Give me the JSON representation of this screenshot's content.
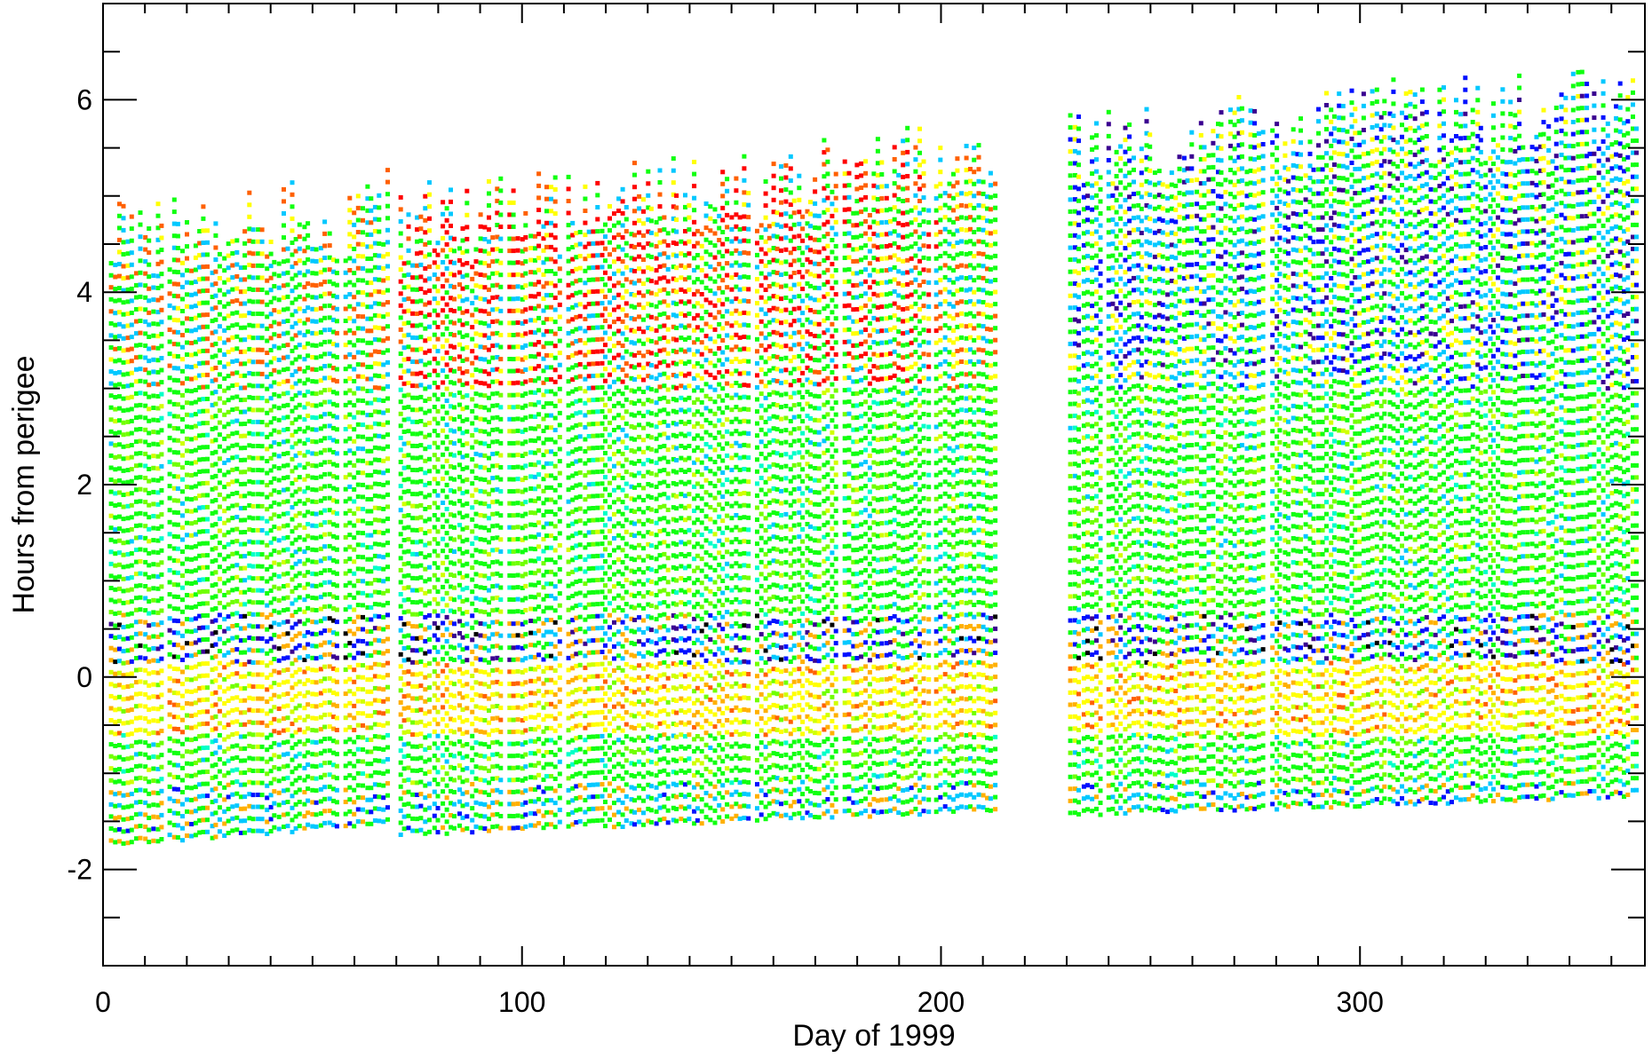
{
  "chart_data": {
    "type": "scatter",
    "title": "",
    "xlabel": "Day of 1999",
    "ylabel": "Hours from perigee",
    "xlim": [
      0,
      368
    ],
    "ylim": [
      -3,
      7
    ],
    "xticks": [
      0,
      100,
      200,
      300
    ],
    "xtick_labels": [
      "0",
      "100",
      "200",
      "300"
    ],
    "xminor_step": 10,
    "yticks": [
      -2,
      0,
      2,
      4,
      6
    ],
    "ytick_labels": [
      "-2",
      "0",
      "2",
      "4",
      "6"
    ],
    "yminor_step": 0.5,
    "grid": false,
    "legend": "none",
    "point_colors": [
      "#000000",
      "#3a0090",
      "#0010ff",
      "#00c8ff",
      "#00ffc8",
      "#10ff10",
      "#70ff00",
      "#d0ff00",
      "#ffff00",
      "#ffb000",
      "#ff6000",
      "#ff0000"
    ],
    "orbit_segments": [
      {
        "day_start": 2,
        "day_end": 68,
        "y_bottom_start": -1.75,
        "y_bottom_end": -1.55,
        "y_top_start": 5.0,
        "y_top_end": 5.3
      },
      {
        "day_start": 71,
        "day_end": 213,
        "y_bottom_start": -1.65,
        "y_bottom_end": -1.4,
        "y_top_start": 5.15,
        "y_top_end": 5.85
      },
      {
        "day_start": 231,
        "day_end": 366,
        "y_bottom_start": -1.45,
        "y_bottom_end": -1.25,
        "y_top_start": 5.9,
        "y_top_end": 6.45
      }
    ],
    "missing_days": [
      15,
      57,
      96,
      110,
      155,
      176,
      198,
      239,
      278
    ]
  }
}
